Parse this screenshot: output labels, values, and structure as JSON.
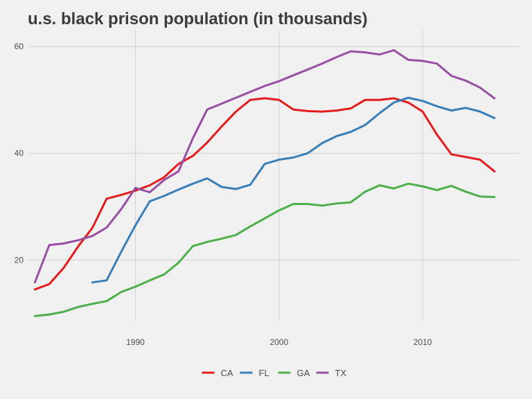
{
  "title": "u.s. black prison population (in thousands)",
  "colors": {
    "CA": "#e41a1c",
    "FL": "#377eb8",
    "GA": "#4daf4a",
    "TX": "#984ea3",
    "grid": "#d2d2d2",
    "background": "#f0f0f0"
  },
  "chart_data": {
    "type": "line",
    "title": "u.s. black prison population (in thousands)",
    "xlabel": "",
    "ylabel": "",
    "xlim": [
      1982.5,
      2016.7
    ],
    "ylim": [
      8.5,
      63
    ],
    "x_ticks": [
      1990,
      2000,
      2010
    ],
    "y_ticks": [
      20,
      40,
      60
    ],
    "grid": true,
    "legend_position": "bottom",
    "series": [
      {
        "name": "CA",
        "color": "#e41a1c",
        "x": [
          1983,
          1984,
          1985,
          1986,
          1987,
          1988,
          1989,
          1990,
          1991,
          1992,
          1993,
          1994,
          1995,
          1996,
          1997,
          1998,
          1999,
          2000,
          2001,
          2002,
          2003,
          2004,
          2005,
          2006,
          2007,
          2008,
          2009,
          2010,
          2011,
          2012,
          2013,
          2014,
          2015
        ],
        "y": [
          14.5,
          15.5,
          18.5,
          22.5,
          26.0,
          31.5,
          32.2,
          33.0,
          34.0,
          35.5,
          38.0,
          39.5,
          42.0,
          45.0,
          47.8,
          50.0,
          50.3,
          50.0,
          48.2,
          47.9,
          47.8,
          48.0,
          48.4,
          50.0,
          50.0,
          50.3,
          49.5,
          47.8,
          43.5,
          39.8,
          39.3,
          38.8,
          36.6
        ]
      },
      {
        "name": "FL",
        "color": "#377eb8",
        "x": [
          1987,
          1988,
          1989,
          1990,
          1991,
          1992,
          1993,
          1994,
          1995,
          1996,
          1997,
          1998,
          1999,
          2000,
          2001,
          2002,
          2003,
          2004,
          2005,
          2006,
          2007,
          2008,
          2009,
          2010,
          2011,
          2012,
          2013,
          2014,
          2015
        ],
        "y": [
          15.8,
          16.2,
          21.5,
          26.5,
          31.0,
          32.0,
          33.2,
          34.3,
          35.3,
          33.7,
          33.3,
          34.1,
          38.0,
          38.8,
          39.2,
          40.0,
          41.9,
          43.2,
          44.0,
          45.3,
          47.5,
          49.5,
          50.4,
          49.8,
          48.8,
          48.0,
          48.5,
          47.8,
          46.6
        ]
      },
      {
        "name": "GA",
        "color": "#4daf4a",
        "x": [
          1983,
          1984,
          1985,
          1986,
          1987,
          1988,
          1989,
          1990,
          1991,
          1992,
          1993,
          1994,
          1995,
          1996,
          1997,
          1998,
          1999,
          2000,
          2001,
          2002,
          2003,
          2004,
          2005,
          2006,
          2007,
          2008,
          2009,
          2010,
          2011,
          2012,
          2013,
          2014,
          2015
        ],
        "y": [
          9.5,
          9.8,
          10.3,
          11.2,
          11.8,
          12.3,
          14.0,
          15.0,
          16.2,
          17.3,
          19.5,
          22.6,
          23.4,
          24.0,
          24.7,
          26.3,
          27.8,
          29.3,
          30.5,
          30.5,
          30.2,
          30.6,
          30.8,
          32.8,
          34.0,
          33.4,
          34.3,
          33.8,
          33.1,
          33.9,
          32.8,
          31.9,
          31.8
        ]
      },
      {
        "name": "TX",
        "color": "#984ea3",
        "x": [
          1983,
          1984,
          1985,
          1986,
          1987,
          1988,
          1989,
          1990,
          1991,
          1992,
          1993,
          1994,
          1995,
          1996,
          1997,
          1998,
          1999,
          2000,
          2001,
          2002,
          2003,
          2004,
          2005,
          2006,
          2007,
          2008,
          2009,
          2010,
          2011,
          2012,
          2013,
          2014,
          2015
        ],
        "y": [
          15.8,
          22.8,
          23.1,
          23.7,
          24.5,
          26.1,
          29.5,
          33.5,
          32.7,
          35.0,
          36.6,
          42.8,
          48.2,
          49.3,
          50.4,
          51.5,
          52.6,
          53.5,
          54.6,
          55.7,
          56.8,
          58.0,
          59.1,
          58.9,
          58.5,
          59.3,
          57.5,
          57.3,
          56.8,
          54.5,
          53.6,
          52.3,
          50.3
        ]
      }
    ]
  }
}
